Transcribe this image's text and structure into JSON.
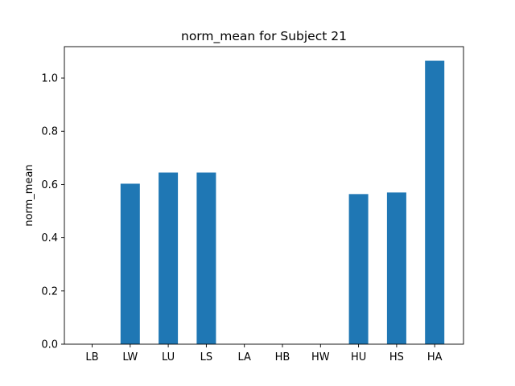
{
  "chart_data": {
    "type": "bar",
    "title": "norm_mean for Subject 21",
    "xlabel": "",
    "ylabel": "norm_mean",
    "categories": [
      "LB",
      "LW",
      "LU",
      "LS",
      "LA",
      "HB",
      "HW",
      "HU",
      "HS",
      "HA"
    ],
    "values": [
      0,
      0.603,
      0.645,
      0.645,
      0,
      0,
      0,
      0.564,
      0.57,
      1.065
    ],
    "ylim": [
      0,
      1.118
    ],
    "yticks": [
      0.0,
      0.2,
      0.4,
      0.6,
      0.8,
      1.0
    ],
    "ytick_labels": [
      "0.0",
      "0.2",
      "0.4",
      "0.6",
      "0.8",
      "1.0"
    ],
    "bar_color": "#1f77b4",
    "grid": false,
    "legend": "none"
  }
}
